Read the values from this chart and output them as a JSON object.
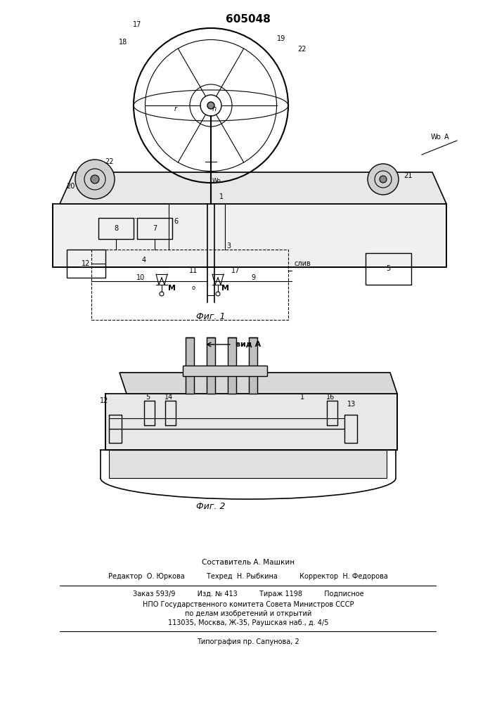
{
  "title": "605048",
  "title_fontsize": 12,
  "background_color": "#ffffff",
  "fig1_label": "Фиг. 1",
  "fig2_label": "Фиг. 2",
  "view_label": "вид А",
  "sestavitel": "Составитель А. Машкин",
  "editor_line": "Редактор  О. Юркова          Техред  Н. Рыбкина          Корректор  Н. Федорова",
  "zakaz_line": "Заказ 593/9          Изд. № 413          Тираж 1198          Подписное",
  "npo_line1": "НПО Государственного комитета Совета Министров СССР",
  "npo_line2": "по делам изобретений и открытий",
  "npo_line3": "113035, Москва, Ж-35, Раушская наб., д. 4/5",
  "tipografia": "Типография пр. Сапунова, 2",
  "text_color": "#000000",
  "line_color": "#000000"
}
